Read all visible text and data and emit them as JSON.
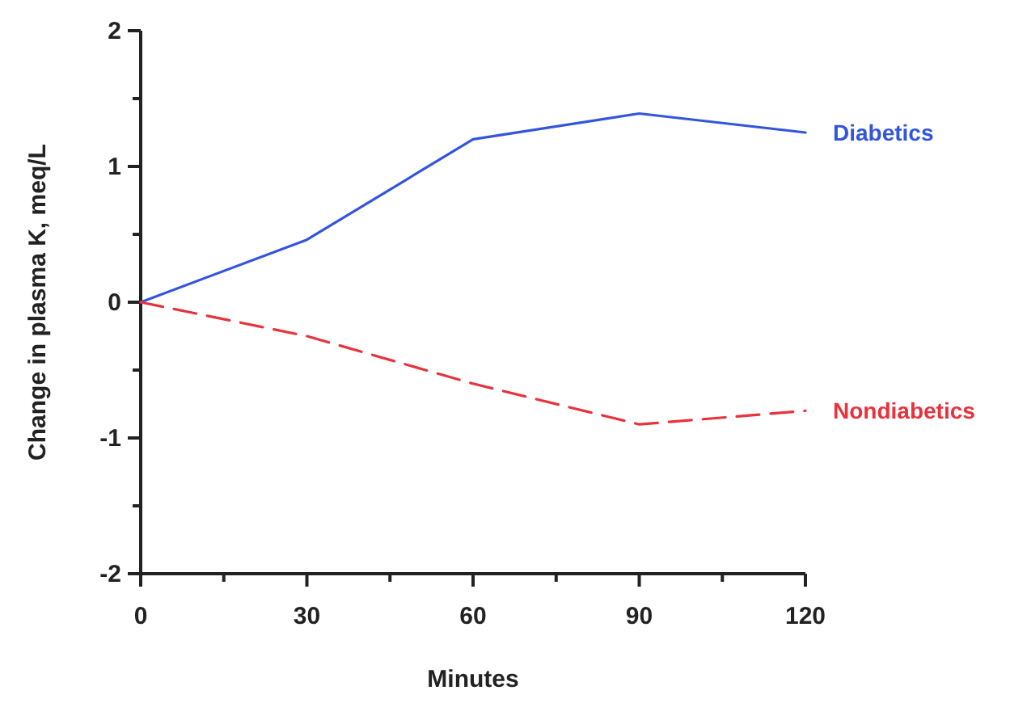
{
  "chart_data": {
    "type": "line",
    "xlabel": "Minutes",
    "ylabel": "Change in plasma K, meq/L",
    "x": [
      0,
      30,
      60,
      90,
      120
    ],
    "series": [
      {
        "name": "Diabetics",
        "color": "#3355dd",
        "values": [
          0,
          0.46,
          1.2,
          1.39,
          1.25
        ],
        "line_style": "solid"
      },
      {
        "name": "Nondiabetics",
        "color": "#e8323c",
        "values": [
          0,
          -0.25,
          -0.6,
          -0.9,
          -0.8
        ],
        "line_style": "dashed"
      }
    ],
    "xlim": [
      0,
      120
    ],
    "xticks": [
      0,
      {
        "value": 15,
        "label": null
      },
      30,
      {
        "value": 45,
        "label": null
      },
      60,
      {
        "value": 75,
        "label": null
      },
      90,
      {
        "value": 105,
        "label": null
      },
      120
    ],
    "ylim": [
      -2,
      2
    ],
    "yticks": [
      -2,
      {
        "value": -1.5,
        "label": null
      },
      -1,
      {
        "value": -0.5,
        "label": null
      },
      0,
      {
        "value": 0.5,
        "label": null
      },
      1,
      {
        "value": 1.5,
        "label": null
      },
      2
    ],
    "grid": false,
    "marker": "none"
  }
}
